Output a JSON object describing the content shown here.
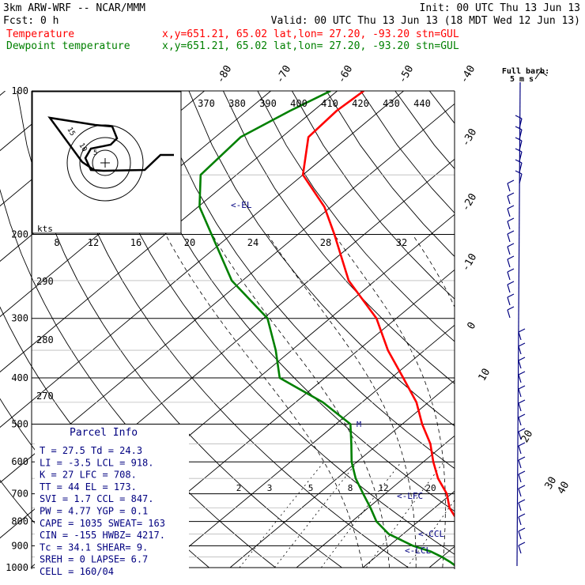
{
  "header": {
    "model": "3km ARW-WRF -- NCAR/MMM",
    "init": "Init: 00 UTC Thu 13 Jun 13",
    "fcst": "Fcst:     0 h",
    "valid": "Valid: 00 UTC Thu 13 Jun 13 (18 MDT Wed 12 Jun 13)",
    "temp_label": "Temperature",
    "temp_info": "x,y=651.21, 65.02   lat,lon= 27.20, -93.20  stn=GUL",
    "dew_label": "Dewpoint temperature",
    "dew_info": "x,y=651.21, 65.02   lat,lon= 27.20, -93.20  stn=GUL"
  },
  "colors": {
    "temperature": "#ff0000",
    "dewpoint": "#008000",
    "barbs": "#000080",
    "grid": "#000000"
  },
  "barb_legend": {
    "line1": "Full barb:",
    "line2": "5 m s"
  },
  "hodograph": {
    "units": "kts",
    "rings": [
      "5",
      "10",
      "15"
    ]
  },
  "theta_labels": [
    "370",
    "380",
    "390",
    "400",
    "410",
    "420",
    "430",
    "440"
  ],
  "mixing_top_labels": [
    "8",
    "12",
    "16",
    "20",
    "24",
    "28",
    "32"
  ],
  "mixing_bottom_labels": [
    "2",
    "3",
    "5",
    "8",
    "12",
    "20"
  ],
  "isotherm_labels": [
    "-80",
    "-70",
    "-60",
    "-50",
    "-40",
    "-30",
    "-20",
    "-10",
    "0",
    "10",
    "20",
    "30",
    "40"
  ],
  "dry_adiabat_labels": [
    "290",
    "280",
    "270"
  ],
  "level_markers": {
    "el": "<-EL",
    "lfc": "<-LFC",
    "ccl": "<-CCL",
    "lcl": "<-LCL"
  },
  "parcel": {
    "title": "Parcel Info",
    "rows": [
      "T  =    27.5  Td =  24.3",
      "LI =    -3.5  LCL =  918.",
      "K  =     27  LFC =  708.",
      "TT =     44  EL  =  173.",
      "SVI =   1.7  CCL =  847.",
      "PW =   4.77  YGP =   0.1",
      "CAPE = 1035  SWEAT=  163",
      "CIN =  -155  HWBZ= 4217.",
      "Tc =   34.1  SHEAR=   9.",
      "SREH =    0  LAPSE=  6.7",
      "CELL = 160/04"
    ]
  },
  "chart_data": {
    "type": "line",
    "title": "",
    "xlabel": "",
    "ylabel": "",
    "y_scale": "log",
    "ylim": [
      1000,
      100
    ],
    "pressure_levels": [
      100,
      200,
      300,
      400,
      500,
      600,
      700,
      800,
      900,
      1000
    ],
    "series": [
      {
        "name": "Temperature",
        "color": "#ff0000",
        "pressure": [
          1000,
          975,
          950,
          925,
          900,
          850,
          800,
          750,
          700,
          650,
          600,
          550,
          500,
          450,
          400,
          350,
          300,
          250,
          200,
          175,
          150,
          125,
          110,
          100
        ],
        "temperature_c": [
          27.5,
          26.2,
          24.6,
          22.6,
          20.8,
          19.0,
          16.0,
          12.3,
          9.3,
          5.2,
          1.5,
          -2.2,
          -7.0,
          -11.8,
          -18.2,
          -25.5,
          -33.0,
          -44.0,
          -54.5,
          -61.0,
          -70.0,
          -76.0,
          -76.5,
          -76.0
        ]
      },
      {
        "name": "Dewpoint temperature",
        "color": "#008000",
        "pressure": [
          1000,
          975,
          950,
          925,
          900,
          850,
          800,
          750,
          700,
          650,
          600,
          550,
          500,
          450,
          400,
          350,
          300,
          250,
          200,
          175,
          150,
          125,
          110,
          100
        ],
        "temperature_c": [
          24.3,
          22.3,
          20.0,
          17.3,
          13.6,
          7.8,
          3.7,
          0.4,
          -3.3,
          -7.2,
          -10.8,
          -14.1,
          -17.8,
          -25.9,
          -36.8,
          -42.4,
          -49.4,
          -61.6,
          -73.0,
          -79.8,
          -85.4,
          -86.2,
          -83.5,
          -81.0
        ]
      }
    ]
  }
}
